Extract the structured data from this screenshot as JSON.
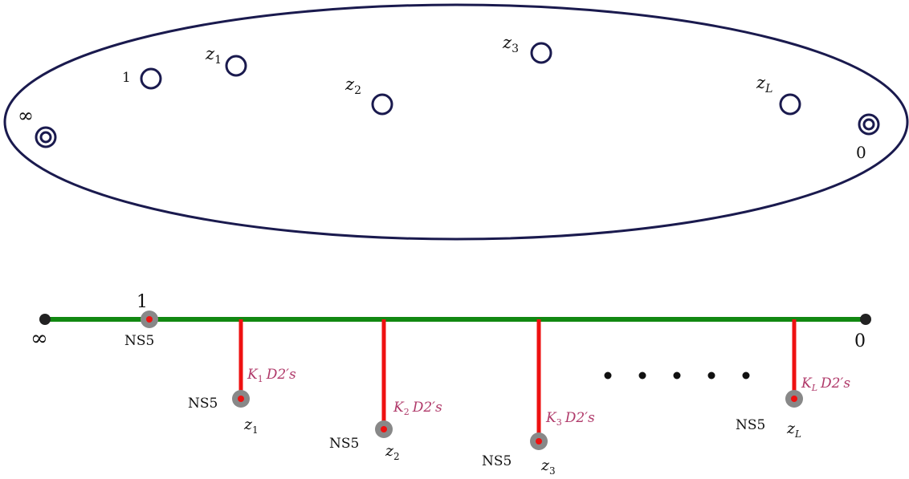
{
  "colors": {
    "ellipse_stroke": "#1a1a4e",
    "puncture_stroke": "#1a1a4e",
    "ns5_line": "#118811",
    "d2_line": "#ee1111",
    "ns5_brane": "#888888",
    "brane_core": "#ee1111",
    "end_point": "#222222",
    "d2_label": "#b03a6a"
  },
  "riemann_sphere": {
    "punctures": {
      "infinity": "∞",
      "one": "1",
      "z1": {
        "base": "z",
        "sub": "1"
      },
      "z2": {
        "base": "z",
        "sub": "2"
      },
      "z3": {
        "base": "z",
        "sub": "3"
      },
      "zL": {
        "base": "z",
        "sub": "L"
      },
      "zero": "0"
    }
  },
  "brane_diagram": {
    "end_left": "∞",
    "end_right": "0",
    "one_label": "1",
    "ns5": "NS5",
    "ellipsis": "• • • • •",
    "d2_stacks": [
      {
        "k": "K",
        "k_sub": "1",
        "text": "D2′s"
      },
      {
        "k": "K",
        "k_sub": "2",
        "text": "D2′s"
      },
      {
        "k": "K",
        "k_sub": "3",
        "text": "D2′s"
      },
      {
        "k": "K",
        "k_sub": "L",
        "text": "D2′s"
      }
    ],
    "z_labels": [
      {
        "base": "z",
        "sub": "1"
      },
      {
        "base": "z",
        "sub": "2"
      },
      {
        "base": "z",
        "sub": "3"
      },
      {
        "base": "z",
        "sub": "L"
      }
    ]
  }
}
